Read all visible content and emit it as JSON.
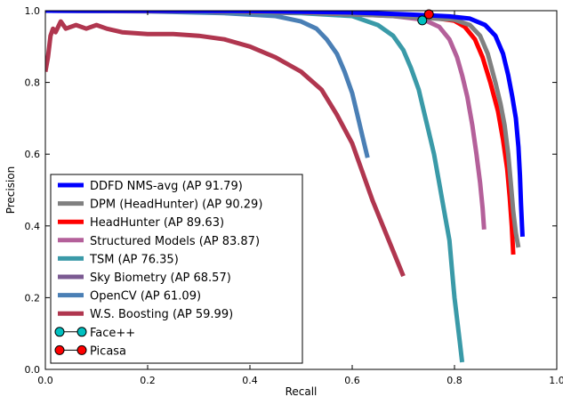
{
  "chart_data": {
    "type": "line",
    "title": "",
    "xlabel": "Recall",
    "ylabel": "Precision",
    "xlim": [
      0.0,
      1.0
    ],
    "ylim": [
      0.0,
      1.0
    ],
    "x_ticks": [
      "0.0",
      "0.2",
      "0.4",
      "0.6",
      "0.8",
      "1.0"
    ],
    "y_ticks": [
      "0.0",
      "0.2",
      "0.4",
      "0.6",
      "0.8",
      "1.0"
    ],
    "grid": false,
    "legend_position": "lower-left",
    "series": [
      {
        "name": "DDFD NMS-avg (AP 91.79)",
        "color": "#0000ff",
        "style": "line",
        "points": [
          [
            0.0,
            1.0
          ],
          [
            0.2,
            1.0
          ],
          [
            0.4,
            0.999
          ],
          [
            0.6,
            0.995
          ],
          [
            0.7,
            0.99
          ],
          [
            0.75,
            0.987
          ],
          [
            0.79,
            0.984
          ],
          [
            0.83,
            0.978
          ],
          [
            0.86,
            0.96
          ],
          [
            0.88,
            0.93
          ],
          [
            0.895,
            0.88
          ],
          [
            0.905,
            0.82
          ],
          [
            0.913,
            0.76
          ],
          [
            0.92,
            0.7
          ],
          [
            0.925,
            0.62
          ],
          [
            0.928,
            0.54
          ],
          [
            0.93,
            0.46
          ],
          [
            0.932,
            0.4
          ],
          [
            0.933,
            0.37
          ]
        ]
      },
      {
        "name": "DPM (HeadHunter) (AP 90.29)",
        "color": "#808080",
        "style": "line",
        "points": [
          [
            0.0,
            1.0
          ],
          [
            0.3,
            0.999
          ],
          [
            0.5,
            0.995
          ],
          [
            0.6,
            0.99
          ],
          [
            0.68,
            0.985
          ],
          [
            0.74,
            0.98
          ],
          [
            0.8,
            0.975
          ],
          [
            0.83,
            0.96
          ],
          [
            0.85,
            0.93
          ],
          [
            0.865,
            0.88
          ],
          [
            0.88,
            0.8
          ],
          [
            0.89,
            0.74
          ],
          [
            0.898,
            0.68
          ],
          [
            0.905,
            0.6
          ],
          [
            0.91,
            0.52
          ],
          [
            0.915,
            0.44
          ],
          [
            0.92,
            0.38
          ],
          [
            0.925,
            0.34
          ]
        ]
      },
      {
        "name": "HeadHunter (AP 89.63)",
        "color": "#ff0000",
        "style": "line",
        "points": [
          [
            0.0,
            1.0
          ],
          [
            0.3,
            0.999
          ],
          [
            0.5,
            0.995
          ],
          [
            0.6,
            0.99
          ],
          [
            0.7,
            0.985
          ],
          [
            0.76,
            0.98
          ],
          [
            0.8,
            0.972
          ],
          [
            0.82,
            0.955
          ],
          [
            0.84,
            0.92
          ],
          [
            0.855,
            0.87
          ],
          [
            0.87,
            0.8
          ],
          [
            0.885,
            0.72
          ],
          [
            0.895,
            0.64
          ],
          [
            0.903,
            0.56
          ],
          [
            0.908,
            0.48
          ],
          [
            0.912,
            0.4
          ],
          [
            0.915,
            0.32
          ]
        ]
      },
      {
        "name": "Structured Models (AP 83.87)",
        "color": "#b4609a",
        "style": "line",
        "points": [
          [
            0.0,
            1.0
          ],
          [
            0.3,
            0.999
          ],
          [
            0.5,
            0.995
          ],
          [
            0.6,
            0.99
          ],
          [
            0.68,
            0.985
          ],
          [
            0.74,
            0.975
          ],
          [
            0.77,
            0.955
          ],
          [
            0.79,
            0.92
          ],
          [
            0.805,
            0.87
          ],
          [
            0.815,
            0.82
          ],
          [
            0.825,
            0.76
          ],
          [
            0.835,
            0.68
          ],
          [
            0.843,
            0.6
          ],
          [
            0.85,
            0.52
          ],
          [
            0.855,
            0.45
          ],
          [
            0.858,
            0.39
          ]
        ]
      },
      {
        "name": "TSM (AP 76.35)",
        "color": "#3a9aa8",
        "style": "line",
        "points": [
          [
            0.0,
            1.0
          ],
          [
            0.3,
            0.998
          ],
          [
            0.5,
            0.993
          ],
          [
            0.6,
            0.985
          ],
          [
            0.65,
            0.96
          ],
          [
            0.68,
            0.93
          ],
          [
            0.7,
            0.89
          ],
          [
            0.715,
            0.84
          ],
          [
            0.73,
            0.78
          ],
          [
            0.74,
            0.72
          ],
          [
            0.75,
            0.66
          ],
          [
            0.76,
            0.6
          ],
          [
            0.77,
            0.52
          ],
          [
            0.78,
            0.44
          ],
          [
            0.79,
            0.36
          ],
          [
            0.795,
            0.28
          ],
          [
            0.8,
            0.2
          ],
          [
            0.805,
            0.14
          ],
          [
            0.81,
            0.08
          ],
          [
            0.815,
            0.02
          ]
        ]
      },
      {
        "name": "Sky Biometry (AP 68.57)",
        "color": "#7b5a92",
        "style": "line",
        "points": []
      },
      {
        "name": "OpenCV (AP 61.09)",
        "color": "#4a7fb5",
        "style": "line",
        "points": [
          [
            0.0,
            1.0
          ],
          [
            0.2,
            0.998
          ],
          [
            0.35,
            0.993
          ],
          [
            0.45,
            0.985
          ],
          [
            0.5,
            0.97
          ],
          [
            0.53,
            0.95
          ],
          [
            0.55,
            0.92
          ],
          [
            0.57,
            0.88
          ],
          [
            0.585,
            0.83
          ],
          [
            0.6,
            0.77
          ],
          [
            0.61,
            0.71
          ],
          [
            0.62,
            0.65
          ],
          [
            0.63,
            0.59
          ]
        ]
      },
      {
        "name": "W.S. Boosting (AP 59.99)",
        "color": "#b0364f",
        "style": "line",
        "points": [
          [
            0.0,
            0.83
          ],
          [
            0.005,
            0.87
          ],
          [
            0.01,
            0.93
          ],
          [
            0.015,
            0.95
          ],
          [
            0.02,
            0.94
          ],
          [
            0.03,
            0.97
          ],
          [
            0.04,
            0.95
          ],
          [
            0.06,
            0.96
          ],
          [
            0.08,
            0.95
          ],
          [
            0.1,
            0.96
          ],
          [
            0.12,
            0.95
          ],
          [
            0.15,
            0.94
          ],
          [
            0.2,
            0.935
          ],
          [
            0.25,
            0.935
          ],
          [
            0.3,
            0.93
          ],
          [
            0.35,
            0.92
          ],
          [
            0.4,
            0.9
          ],
          [
            0.45,
            0.87
          ],
          [
            0.5,
            0.83
          ],
          [
            0.54,
            0.78
          ],
          [
            0.57,
            0.71
          ],
          [
            0.6,
            0.63
          ],
          [
            0.62,
            0.55
          ],
          [
            0.64,
            0.47
          ],
          [
            0.66,
            0.4
          ],
          [
            0.68,
            0.33
          ],
          [
            0.7,
            0.26
          ]
        ]
      },
      {
        "name": "Face++",
        "color": "#00c0c0",
        "style": "marker",
        "points": [
          [
            0.737,
            0.973
          ]
        ]
      },
      {
        "name": "Picasa",
        "color": "#ff0000",
        "style": "marker",
        "points": [
          [
            0.75,
            0.99
          ]
        ]
      }
    ]
  }
}
